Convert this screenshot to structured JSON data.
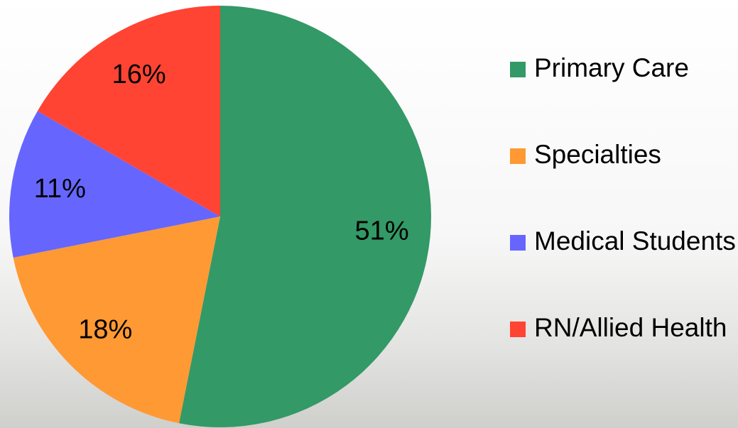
{
  "chart_data": {
    "type": "pie",
    "categories": [
      "Primary Care",
      "Specialties",
      "Medical Students",
      "RN/Allied Health"
    ],
    "values": [
      51,
      18,
      11,
      16
    ],
    "value_labels": [
      "51%",
      "18%",
      "11%",
      "16%"
    ],
    "colors": [
      "#339966",
      "#ff9933",
      "#6666ff",
      "#ff4433"
    ],
    "legend": "right"
  }
}
